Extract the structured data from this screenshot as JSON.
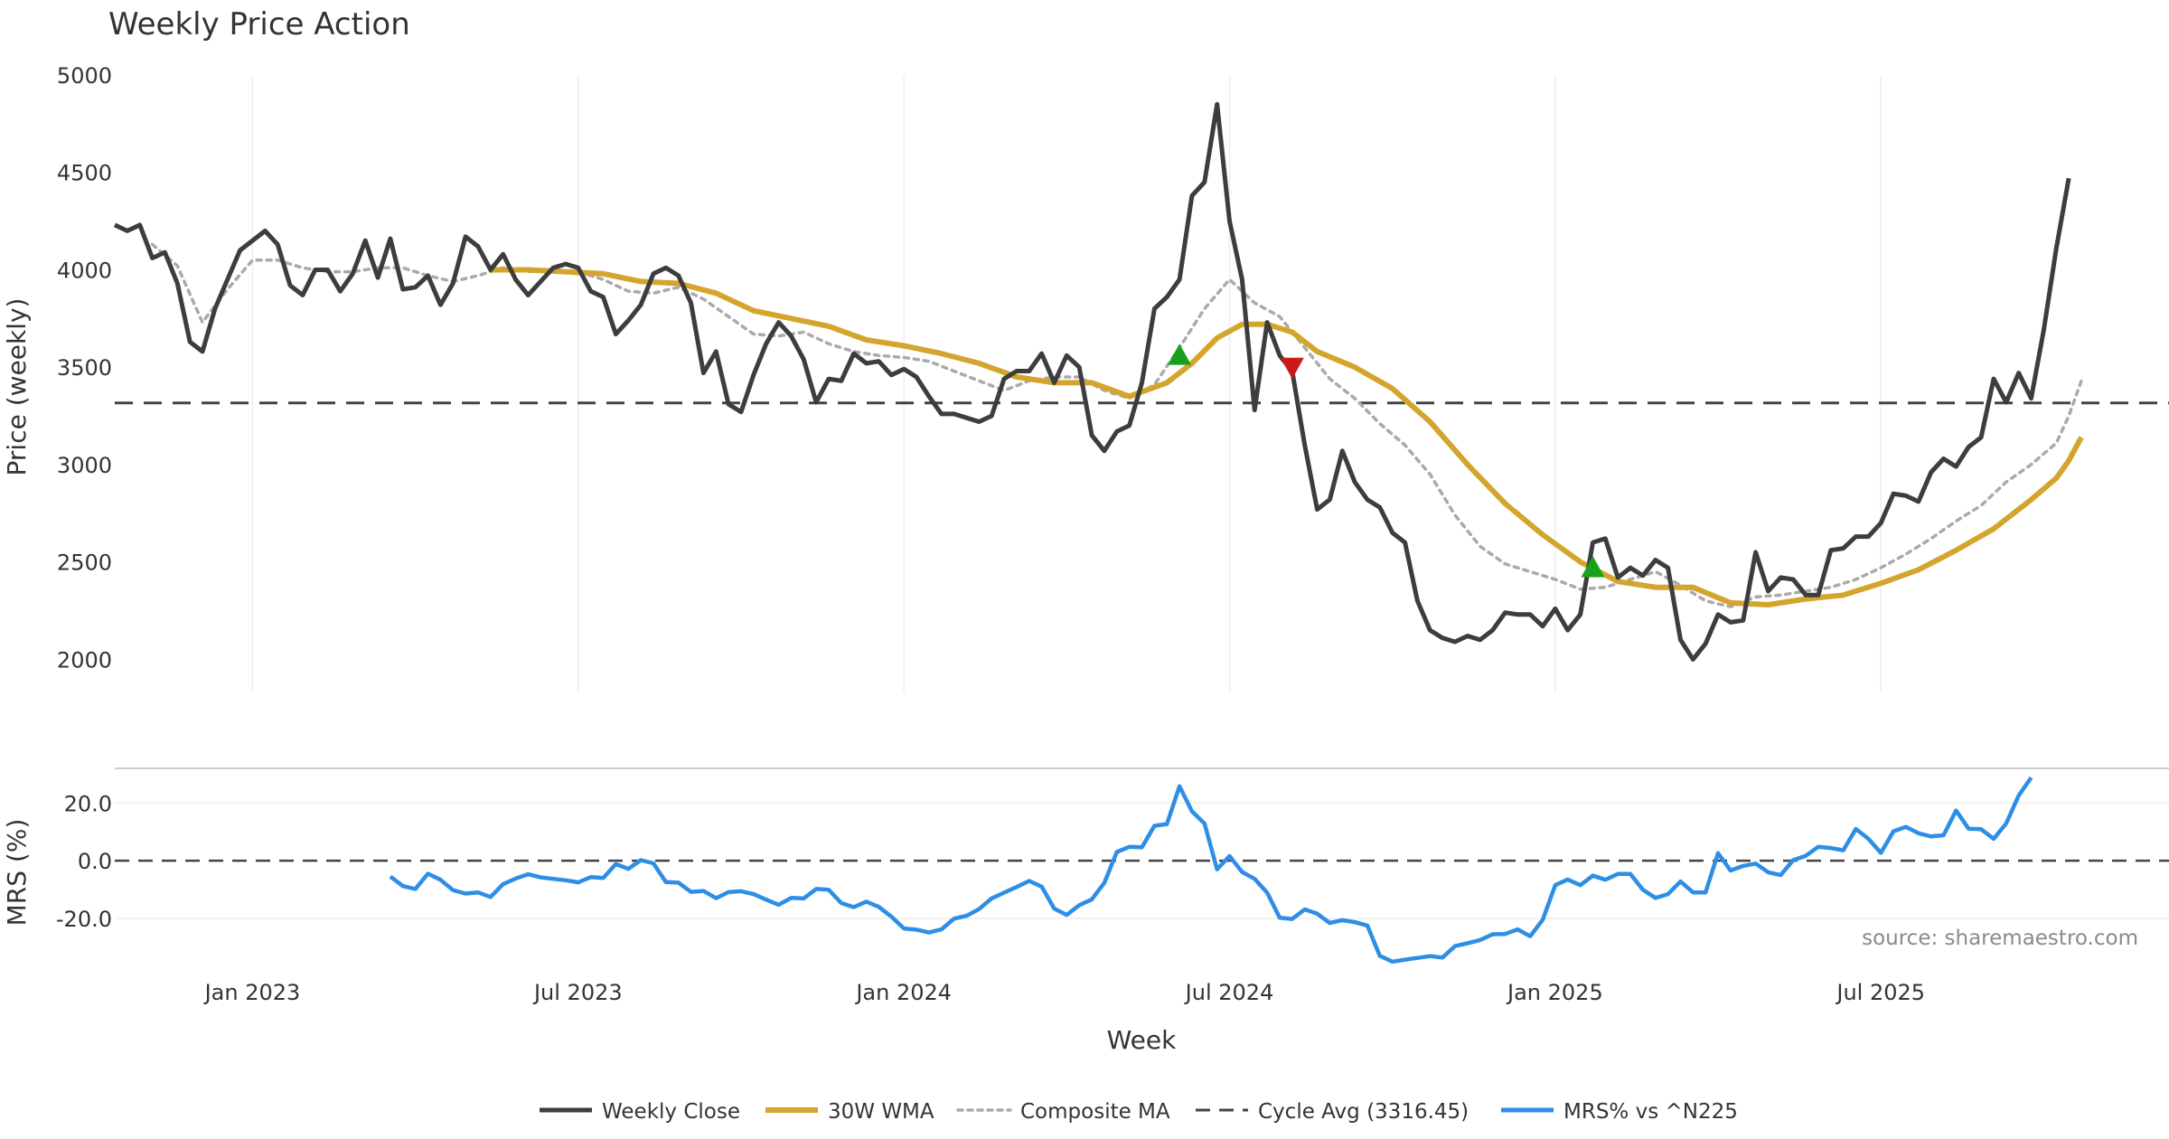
{
  "chart_data": {
    "type": "line",
    "title": "Weekly Price Action",
    "xlabel": "Week",
    "ylabel": "Price (weekly)",
    "ylabel2": "MRS (%)",
    "source": "source: sharemaestro.com",
    "x_ticks": [
      "Jan 2023",
      "Jul 2023",
      "Jan 2024",
      "Jul 2024",
      "Jan 2025",
      "Jul 2025"
    ],
    "y_ticks": [
      "2000",
      "2500",
      "3000",
      "3500",
      "4000",
      "4500",
      "5000"
    ],
    "y2_ticks": [
      "20.0",
      "0.0",
      "-20.0"
    ],
    "ylim": [
      1830,
      5000
    ],
    "y2lim": [
      -36,
      32
    ],
    "x_range_weeks": [
      -11,
      153
    ],
    "cycle_avg": 3316.45,
    "legend": {
      "close": "Weekly Close",
      "wma": "30W WMA",
      "composite": "Composite MA",
      "cycle": "Cycle Avg (3316.45)",
      "mrs": "MRS% vs ^N225"
    },
    "colors": {
      "close": "#3d3d3d",
      "wma": "#d4a52c",
      "composite": "#aaaaaa",
      "cycle": "#444444",
      "mrs": "#2e8ee6",
      "buy": "#1aa11a",
      "sell": "#cc1a1a"
    },
    "close": [
      [
        -11,
        4230
      ],
      [
        -10,
        4200
      ],
      [
        -9,
        4230
      ],
      [
        -8,
        4060
      ],
      [
        -7,
        4090
      ],
      [
        -6,
        3930
      ],
      [
        -5,
        3630
      ],
      [
        -4,
        3580
      ],
      [
        -3,
        3800
      ],
      [
        -2,
        3950
      ],
      [
        -1,
        4100
      ],
      [
        0,
        4150
      ],
      [
        1,
        4200
      ],
      [
        2,
        4130
      ],
      [
        3,
        3920
      ],
      [
        4,
        3870
      ],
      [
        5,
        4000
      ],
      [
        6,
        4000
      ],
      [
        7,
        3890
      ],
      [
        8,
        3980
      ],
      [
        9,
        4150
      ],
      [
        10,
        3960
      ],
      [
        11,
        4160
      ],
      [
        12,
        3900
      ],
      [
        13,
        3910
      ],
      [
        14,
        3970
      ],
      [
        15,
        3820
      ],
      [
        16,
        3930
      ],
      [
        17,
        4170
      ],
      [
        18,
        4120
      ],
      [
        19,
        4000
      ],
      [
        20,
        4080
      ],
      [
        21,
        3950
      ],
      [
        22,
        3870
      ],
      [
        23,
        3940
      ],
      [
        24,
        4010
      ],
      [
        25,
        4030
      ],
      [
        26,
        4010
      ],
      [
        27,
        3890
      ],
      [
        28,
        3860
      ],
      [
        29,
        3670
      ],
      [
        30,
        3740
      ],
      [
        31,
        3820
      ],
      [
        32,
        3980
      ],
      [
        33,
        4010
      ],
      [
        34,
        3970
      ],
      [
        35,
        3830
      ],
      [
        36,
        3470
      ],
      [
        37,
        3580
      ],
      [
        38,
        3310
      ],
      [
        39,
        3270
      ],
      [
        40,
        3460
      ],
      [
        41,
        3620
      ],
      [
        42,
        3730
      ],
      [
        43,
        3660
      ],
      [
        44,
        3540
      ],
      [
        45,
        3320
      ],
      [
        46,
        3440
      ],
      [
        47,
        3430
      ],
      [
        48,
        3570
      ],
      [
        49,
        3520
      ],
      [
        50,
        3530
      ],
      [
        51,
        3460
      ],
      [
        52,
        3490
      ],
      [
        53,
        3450
      ],
      [
        54,
        3350
      ],
      [
        55,
        3260
      ],
      [
        56,
        3260
      ],
      [
        57,
        3240
      ],
      [
        58,
        3220
      ],
      [
        59,
        3250
      ],
      [
        60,
        3440
      ],
      [
        61,
        3480
      ],
      [
        62,
        3480
      ],
      [
        63,
        3570
      ],
      [
        64,
        3420
      ],
      [
        65,
        3560
      ],
      [
        66,
        3500
      ],
      [
        67,
        3150
      ],
      [
        68,
        3070
      ],
      [
        69,
        3170
      ],
      [
        70,
        3200
      ],
      [
        71,
        3420
      ],
      [
        72,
        3800
      ],
      [
        73,
        3860
      ],
      [
        74,
        3950
      ],
      [
        75,
        4380
      ],
      [
        76,
        4450
      ],
      [
        77,
        4850
      ],
      [
        78,
        4250
      ],
      [
        79,
        3950
      ],
      [
        80,
        3280
      ],
      [
        81,
        3730
      ],
      [
        82,
        3560
      ],
      [
        83,
        3480
      ],
      [
        84,
        3100
      ],
      [
        85,
        2770
      ],
      [
        86,
        2820
      ],
      [
        87,
        3070
      ],
      [
        88,
        2910
      ],
      [
        89,
        2820
      ],
      [
        90,
        2780
      ],
      [
        91,
        2650
      ],
      [
        92,
        2600
      ],
      [
        93,
        2300
      ],
      [
        94,
        2150
      ],
      [
        95,
        2110
      ],
      [
        96,
        2090
      ],
      [
        97,
        2120
      ],
      [
        98,
        2100
      ],
      [
        99,
        2150
      ],
      [
        100,
        2240
      ],
      [
        101,
        2230
      ],
      [
        102,
        2230
      ],
      [
        103,
        2170
      ],
      [
        104,
        2260
      ],
      [
        105,
        2150
      ],
      [
        106,
        2230
      ],
      [
        107,
        2600
      ],
      [
        108,
        2620
      ],
      [
        109,
        2420
      ],
      [
        110,
        2470
      ],
      [
        111,
        2430
      ],
      [
        112,
        2510
      ],
      [
        113,
        2470
      ],
      [
        114,
        2100
      ],
      [
        115,
        2000
      ],
      [
        116,
        2080
      ],
      [
        117,
        2230
      ],
      [
        118,
        2190
      ],
      [
        119,
        2200
      ],
      [
        120,
        2550
      ],
      [
        121,
        2350
      ],
      [
        122,
        2420
      ],
      [
        123,
        2410
      ],
      [
        124,
        2330
      ],
      [
        125,
        2330
      ],
      [
        126,
        2560
      ],
      [
        127,
        2570
      ],
      [
        128,
        2630
      ],
      [
        129,
        2630
      ],
      [
        130,
        2700
      ],
      [
        131,
        2850
      ],
      [
        132,
        2840
      ],
      [
        133,
        2810
      ],
      [
        134,
        2960
      ],
      [
        135,
        3030
      ],
      [
        136,
        2990
      ],
      [
        137,
        3090
      ],
      [
        138,
        3140
      ],
      [
        139,
        3440
      ],
      [
        140,
        3320
      ],
      [
        141,
        3470
      ],
      [
        142,
        3340
      ],
      [
        143,
        3690
      ],
      [
        144,
        4110
      ],
      [
        145,
        4470
      ]
    ],
    "wma": [
      [
        19,
        4000
      ],
      [
        22,
        4000
      ],
      [
        25,
        3990
      ],
      [
        28,
        3980
      ],
      [
        31,
        3940
      ],
      [
        34,
        3930
      ],
      [
        37,
        3880
      ],
      [
        40,
        3790
      ],
      [
        43,
        3750
      ],
      [
        46,
        3710
      ],
      [
        49,
        3640
      ],
      [
        52,
        3610
      ],
      [
        55,
        3570
      ],
      [
        58,
        3520
      ],
      [
        61,
        3450
      ],
      [
        64,
        3420
      ],
      [
        67,
        3420
      ],
      [
        70,
        3350
      ],
      [
        73,
        3420
      ],
      [
        75,
        3520
      ],
      [
        77,
        3650
      ],
      [
        79,
        3720
      ],
      [
        81,
        3720
      ],
      [
        83,
        3680
      ],
      [
        85,
        3580
      ],
      [
        88,
        3500
      ],
      [
        91,
        3390
      ],
      [
        94,
        3220
      ],
      [
        97,
        3000
      ],
      [
        100,
        2800
      ],
      [
        103,
        2640
      ],
      [
        106,
        2500
      ],
      [
        109,
        2400
      ],
      [
        112,
        2370
      ],
      [
        115,
        2370
      ],
      [
        118,
        2290
      ],
      [
        121,
        2280
      ],
      [
        124,
        2310
      ],
      [
        127,
        2330
      ],
      [
        130,
        2390
      ],
      [
        133,
        2460
      ],
      [
        136,
        2560
      ],
      [
        139,
        2670
      ],
      [
        142,
        2820
      ],
      [
        144,
        2930
      ],
      [
        145,
        3020
      ],
      [
        146,
        3140
      ]
    ],
    "composite": [
      [
        -8,
        4130
      ],
      [
        -6,
        4020
      ],
      [
        -4,
        3730
      ],
      [
        -2,
        3900
      ],
      [
        0,
        4050
      ],
      [
        2,
        4050
      ],
      [
        4,
        4010
      ],
      [
        6,
        3990
      ],
      [
        8,
        3990
      ],
      [
        10,
        4010
      ],
      [
        12,
        4010
      ],
      [
        14,
        3970
      ],
      [
        16,
        3940
      ],
      [
        18,
        3970
      ],
      [
        20,
        4010
      ],
      [
        22,
        3990
      ],
      [
        24,
        4000
      ],
      [
        26,
        3990
      ],
      [
        28,
        3950
      ],
      [
        30,
        3890
      ],
      [
        32,
        3880
      ],
      [
        34,
        3910
      ],
      [
        36,
        3850
      ],
      [
        38,
        3760
      ],
      [
        40,
        3670
      ],
      [
        42,
        3660
      ],
      [
        44,
        3680
      ],
      [
        46,
        3620
      ],
      [
        48,
        3580
      ],
      [
        50,
        3560
      ],
      [
        52,
        3550
      ],
      [
        54,
        3530
      ],
      [
        56,
        3480
      ],
      [
        58,
        3430
      ],
      [
        60,
        3380
      ],
      [
        62,
        3430
      ],
      [
        64,
        3450
      ],
      [
        66,
        3450
      ],
      [
        68,
        3380
      ],
      [
        70,
        3340
      ],
      [
        72,
        3410
      ],
      [
        74,
        3600
      ],
      [
        76,
        3800
      ],
      [
        78,
        3950
      ],
      [
        80,
        3830
      ],
      [
        82,
        3760
      ],
      [
        84,
        3600
      ],
      [
        86,
        3440
      ],
      [
        88,
        3340
      ],
      [
        90,
        3210
      ],
      [
        92,
        3100
      ],
      [
        94,
        2950
      ],
      [
        96,
        2740
      ],
      [
        98,
        2580
      ],
      [
        100,
        2490
      ],
      [
        102,
        2450
      ],
      [
        104,
        2410
      ],
      [
        106,
        2360
      ],
      [
        108,
        2370
      ],
      [
        110,
        2410
      ],
      [
        112,
        2450
      ],
      [
        114,
        2380
      ],
      [
        116,
        2300
      ],
      [
        118,
        2270
      ],
      [
        120,
        2320
      ],
      [
        122,
        2330
      ],
      [
        124,
        2350
      ],
      [
        126,
        2370
      ],
      [
        128,
        2410
      ],
      [
        130,
        2470
      ],
      [
        132,
        2540
      ],
      [
        134,
        2620
      ],
      [
        136,
        2710
      ],
      [
        138,
        2790
      ],
      [
        140,
        2910
      ],
      [
        142,
        3000
      ],
      [
        144,
        3110
      ],
      [
        145,
        3250
      ],
      [
        146,
        3430
      ]
    ],
    "mrs": [
      [
        11,
        -5.5
      ],
      [
        12,
        -8.8
      ],
      [
        13,
        -9.8
      ],
      [
        14,
        -4.5
      ],
      [
        15,
        -6.6
      ],
      [
        16,
        -10.2
      ],
      [
        17,
        -11.4
      ],
      [
        18,
        -11.0
      ],
      [
        19,
        -12.6
      ],
      [
        20,
        -8.1
      ],
      [
        21,
        -6.2
      ],
      [
        22,
        -4.7
      ],
      [
        23,
        -5.8
      ],
      [
        24,
        -6.3
      ],
      [
        25,
        -6.8
      ],
      [
        26,
        -7.5
      ],
      [
        27,
        -5.7
      ],
      [
        28,
        -6.0
      ],
      [
        29,
        -1.2
      ],
      [
        30,
        -2.8
      ],
      [
        31,
        0.2
      ],
      [
        32,
        -0.9
      ],
      [
        33,
        -7.4
      ],
      [
        34,
        -7.6
      ],
      [
        35,
        -10.8
      ],
      [
        36,
        -10.5
      ],
      [
        37,
        -13.0
      ],
      [
        38,
        -10.9
      ],
      [
        39,
        -10.6
      ],
      [
        40,
        -11.6
      ],
      [
        41,
        -13.5
      ],
      [
        42,
        -15.3
      ],
      [
        43,
        -12.9
      ],
      [
        44,
        -13.1
      ],
      [
        45,
        -9.8
      ],
      [
        46,
        -10.1
      ],
      [
        47,
        -14.7
      ],
      [
        48,
        -16.1
      ],
      [
        49,
        -14.2
      ],
      [
        50,
        -16.0
      ],
      [
        51,
        -19.4
      ],
      [
        52,
        -23.5
      ],
      [
        53,
        -23.9
      ],
      [
        54,
        -24.9
      ],
      [
        55,
        -23.8
      ],
      [
        56,
        -20.1
      ],
      [
        57,
        -19.1
      ],
      [
        58,
        -16.8
      ],
      [
        59,
        -13.1
      ],
      [
        60,
        -11.1
      ],
      [
        61,
        -9.1
      ],
      [
        62,
        -7.0
      ],
      [
        63,
        -9.0
      ],
      [
        64,
        -16.6
      ],
      [
        65,
        -18.8
      ],
      [
        66,
        -15.4
      ],
      [
        67,
        -13.4
      ],
      [
        68,
        -7.7
      ],
      [
        69,
        3.0
      ],
      [
        70,
        4.8
      ],
      [
        71,
        4.6
      ],
      [
        72,
        12.1
      ],
      [
        73,
        12.7
      ],
      [
        74,
        25.8
      ],
      [
        75,
        17.1
      ],
      [
        76,
        12.9
      ],
      [
        77,
        -3.0
      ],
      [
        78,
        1.6
      ],
      [
        79,
        -3.9
      ],
      [
        80,
        -6.3
      ],
      [
        81,
        -11.1
      ],
      [
        82,
        -19.8
      ],
      [
        83,
        -20.2
      ],
      [
        84,
        -16.9
      ],
      [
        85,
        -18.4
      ],
      [
        86,
        -21.6
      ],
      [
        87,
        -20.6
      ],
      [
        88,
        -21.3
      ],
      [
        89,
        -22.5
      ],
      [
        90,
        -33.0
      ],
      [
        91,
        -35.0
      ],
      [
        92,
        -34.3
      ],
      [
        93,
        -33.7
      ],
      [
        94,
        -33.1
      ],
      [
        95,
        -33.6
      ],
      [
        96,
        -29.6
      ],
      [
        97,
        -28.6
      ],
      [
        98,
        -27.5
      ],
      [
        99,
        -25.5
      ],
      [
        100,
        -25.4
      ],
      [
        101,
        -23.8
      ],
      [
        102,
        -26.2
      ],
      [
        103,
        -20.5
      ],
      [
        104,
        -8.5
      ],
      [
        105,
        -6.5
      ],
      [
        106,
        -8.5
      ],
      [
        107,
        -5.2
      ],
      [
        108,
        -6.6
      ],
      [
        109,
        -4.6
      ],
      [
        110,
        -4.6
      ],
      [
        111,
        -10.1
      ],
      [
        112,
        -12.9
      ],
      [
        113,
        -11.6
      ],
      [
        114,
        -7.2
      ],
      [
        115,
        -11.0
      ],
      [
        116,
        -11.0
      ],
      [
        117,
        2.6
      ],
      [
        118,
        -3.4
      ],
      [
        119,
        -1.8
      ],
      [
        120,
        -1.0
      ],
      [
        121,
        -4.0
      ],
      [
        122,
        -5.0
      ],
      [
        123,
        0.2
      ],
      [
        124,
        1.7
      ],
      [
        125,
        4.8
      ],
      [
        126,
        4.4
      ],
      [
        127,
        3.6
      ],
      [
        128,
        11.0
      ],
      [
        129,
        7.6
      ],
      [
        130,
        2.7
      ],
      [
        131,
        10.2
      ],
      [
        132,
        11.7
      ],
      [
        133,
        9.5
      ],
      [
        134,
        8.4
      ],
      [
        135,
        8.8
      ],
      [
        136,
        17.4
      ],
      [
        137,
        11.1
      ],
      [
        138,
        10.9
      ],
      [
        139,
        7.6
      ],
      [
        140,
        12.9
      ],
      [
        141,
        22.6
      ],
      [
        142,
        28.8
      ]
    ],
    "signals": [
      {
        "type": "buy",
        "x": 74,
        "y": 3560
      },
      {
        "type": "sell",
        "x": 83,
        "y": 3500
      },
      {
        "type": "buy",
        "x": 107,
        "y": 2470
      }
    ]
  }
}
